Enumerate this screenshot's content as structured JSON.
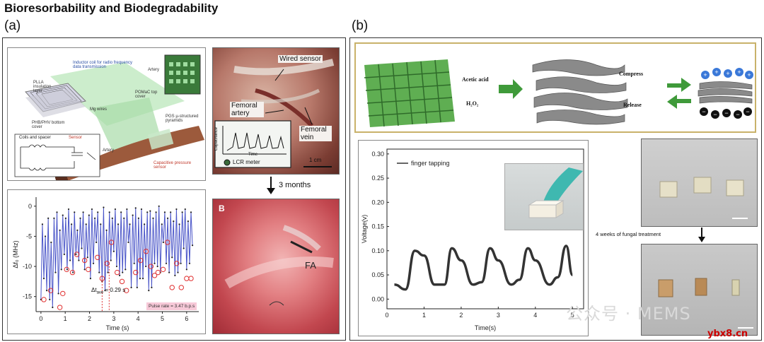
{
  "title": "Bioresorbability and Biodegradability",
  "panel_a": {
    "label": "(a)",
    "schematic": {
      "pla_layer": "PLLA insulation layer",
      "inductor": "Inductor coil for radio frequency data transmission",
      "artery_top": "Artery",
      "pomac": "POMaC top cover",
      "mg": "Mg wires",
      "phb": "PHB/PHV bottom cover",
      "pgs": "PGS µ-structured pyramids",
      "artery_bottom": "Artery",
      "cap": "Capacitive pressure sensor",
      "coils": "Coils and spacer",
      "sensor": "Sensor"
    },
    "photo1": {
      "wired_sensor": "Wired sensor",
      "femoral_artery": "Femoral artery",
      "femoral_vein": "Femoral vein",
      "capacitance": "Capacitance",
      "time": "Time",
      "lcr": "LCR meter",
      "scale": "1 cm"
    },
    "arrow_label": "3 months",
    "photo2": {
      "label": "B",
      "fa": "FA"
    },
    "chart_info": {
      "dt": "Δt",
      "dt_sub": "ave",
      "dt_val": "= 0.29 s",
      "pulse": "Pulse rate = 3.47 b.p.s"
    }
  },
  "panel_b": {
    "label": "(b)",
    "process": {
      "acetic": "Acetic acid",
      "h2o2": "H₂O₂",
      "compress": "Compress",
      "release": "Release"
    },
    "photo_labels": {
      "fungal": "4 weeks of fungal treatment"
    }
  },
  "watermark": {
    "text": "公众号 · MEMS",
    "site": "ybx8.cn"
  },
  "chart_data": [
    {
      "type": "line",
      "xlabel": "Time (s)",
      "ylabel": "Δf₀ (MHz)",
      "xlim": [
        -0.2,
        6.5
      ],
      "ylim": [
        -17.5,
        1.5
      ],
      "xticks": [
        0,
        1,
        2,
        3,
        4,
        5,
        6
      ],
      "yticks": [
        0,
        -5,
        -10,
        -15
      ],
      "series": [
        {
          "x": [
            0.0,
            0.06,
            0.12,
            0.18,
            0.24,
            0.3,
            0.36,
            0.42,
            0.48,
            0.54,
            0.6,
            0.66,
            0.72,
            0.78,
            0.84,
            0.9,
            0.96,
            1.02,
            1.08,
            1.14,
            1.2,
            1.26,
            1.32,
            1.38,
            1.44,
            1.5,
            1.56,
            1.62,
            1.68,
            1.74,
            1.8,
            1.86,
            1.92,
            1.98,
            2.04,
            2.1,
            2.16,
            2.22,
            2.28,
            2.34,
            2.4,
            2.46,
            2.52,
            2.58,
            2.64,
            2.7,
            2.76,
            2.82,
            2.88,
            2.94,
            3.0,
            3.06,
            3.12,
            3.18,
            3.24,
            3.3,
            3.36,
            3.42,
            3.48,
            3.54,
            3.6,
            3.66,
            3.72,
            3.78,
            3.84,
            3.9,
            3.96,
            4.02,
            4.08,
            4.14,
            4.2,
            4.26,
            4.32,
            4.38,
            4.44,
            4.5,
            4.56,
            4.62,
            4.68,
            4.74,
            4.8,
            4.86,
            4.92,
            4.98,
            5.04,
            5.1,
            5.16,
            5.22,
            5.28,
            5.34,
            5.4,
            5.46,
            5.52,
            5.58,
            5.64,
            5.7,
            5.76,
            5.82,
            5.88,
            5.94,
            6.0,
            6.06,
            6.12,
            6.18,
            6.24
          ],
          "values": [
            -15.5,
            -3,
            -12,
            -5,
            -14,
            -2,
            -15.5,
            -6,
            -16.8,
            -2,
            -11,
            -1,
            -14.5,
            -4,
            -10.5,
            -1.5,
            -8,
            -2,
            -10.5,
            -0.5,
            -9,
            -3,
            -11,
            -1,
            -8,
            -4,
            -9,
            -2,
            -7,
            -1,
            -10.5,
            -3,
            -8.5,
            -1.5,
            -12,
            -0.5,
            -9.5,
            -2,
            -6,
            -1,
            -11,
            -3,
            -12.5,
            -0.2,
            -14,
            -4,
            -11,
            -1,
            -9,
            -2,
            -7.5,
            -0.5,
            -10,
            -3,
            -11.5,
            -1,
            -11,
            -2,
            -10.5,
            -0.5,
            -6,
            -3,
            -13.5,
            -1.5,
            -9.5,
            -0.3,
            -13.5,
            -2,
            -12,
            -0.5,
            -12,
            -3,
            -10,
            -1,
            -14,
            -0.8,
            -13.5,
            -2,
            -9.5,
            -1,
            -10,
            0,
            -11,
            -3,
            -6,
            -1,
            -9.5,
            -2,
            -11,
            -1,
            -8.5,
            -2.5,
            -11.5,
            -0.5,
            -11,
            -3,
            -9.5,
            -1,
            -7,
            -0.5,
            -10.5,
            -2.5,
            -9.5,
            -1,
            -6.5
          ],
          "circled_minima": [
            [
              0.12,
              -15.5
            ],
            [
              0.4,
              -14
            ],
            [
              0.78,
              -16.8
            ],
            [
              0.9,
              -14.5
            ],
            [
              1.06,
              -10.5
            ],
            [
              1.3,
              -11
            ],
            [
              1.48,
              -8
            ],
            [
              1.8,
              -9
            ],
            [
              1.95,
              -10.5
            ],
            [
              2.33,
              -8.5
            ],
            [
              2.52,
              -12
            ],
            [
              2.72,
              -9.5
            ],
            [
              2.9,
              -6
            ],
            [
              3.14,
              -11
            ],
            [
              3.34,
              -12.5
            ],
            [
              3.52,
              -14
            ],
            [
              3.9,
              -11
            ],
            [
              4.1,
              -9
            ],
            [
              4.33,
              -7.5
            ],
            [
              4.53,
              -10
            ],
            [
              4.68,
              -11.5
            ],
            [
              4.82,
              -11
            ],
            [
              5.03,
              -10.5
            ],
            [
              5.21,
              -6
            ],
            [
              5.4,
              -13.5
            ],
            [
              5.59,
              -9.5
            ],
            [
              5.78,
              -13.5
            ],
            [
              6.0,
              -12
            ],
            [
              6.18,
              -12
            ]
          ]
        }
      ]
    },
    {
      "type": "line",
      "xlabel": "Time(s)",
      "ylabel": "Voltage(v)",
      "xlim": [
        0,
        5.3
      ],
      "ylim": [
        -0.02,
        0.31
      ],
      "xticks": [
        0,
        1,
        2,
        3,
        4,
        5
      ],
      "yticks": [
        0.0,
        0.05,
        0.1,
        0.15,
        0.2,
        0.25,
        0.3
      ],
      "series": [
        {
          "name": "finger tapping",
          "x": [
            0.2,
            0.5,
            0.75,
            1.0,
            1.28,
            1.55,
            1.75,
            2.0,
            2.32,
            2.55,
            2.78,
            3.0,
            3.35,
            3.57,
            3.8,
            4.0,
            4.38,
            4.6,
            4.83,
            5.0
          ],
          "values": [
            0.03,
            0.02,
            0.1,
            0.09,
            0.03,
            0.03,
            0.105,
            0.08,
            0.03,
            0.035,
            0.105,
            0.08,
            0.03,
            0.04,
            0.105,
            0.08,
            0.03,
            0.045,
            0.11,
            0.05
          ]
        }
      ]
    }
  ]
}
